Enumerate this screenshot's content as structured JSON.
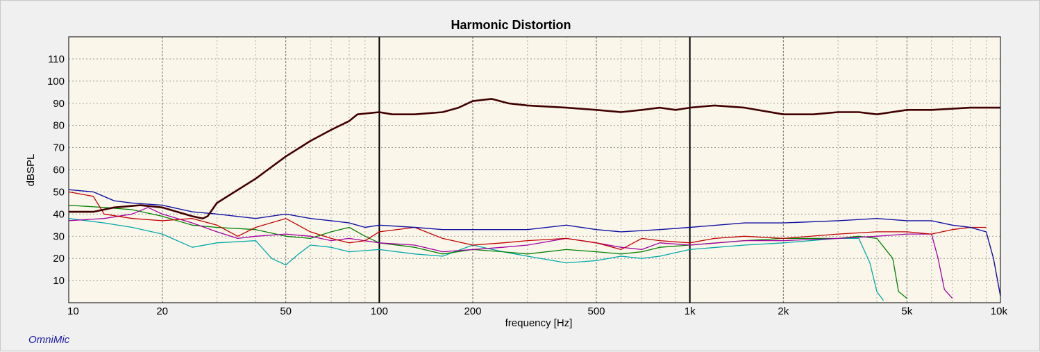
{
  "window": {
    "brand": "OmniMic"
  },
  "chart_data": {
    "type": "line",
    "title": "Harmonic Distortion",
    "xlabel": "frequency [Hz]",
    "ylabel": "dBSPL",
    "xscale": "log",
    "xlim": [
      10,
      10000
    ],
    "ylim": [
      0,
      120
    ],
    "x_ticks": [
      {
        "value": 10,
        "label": "10"
      },
      {
        "value": 20,
        "label": "20"
      },
      {
        "value": 50,
        "label": "50"
      },
      {
        "value": 100,
        "label": "100"
      },
      {
        "value": 200,
        "label": "200"
      },
      {
        "value": 500,
        "label": "500"
      },
      {
        "value": 1000,
        "label": "1k"
      },
      {
        "value": 2000,
        "label": "2k"
      },
      {
        "value": 5000,
        "label": "5k"
      },
      {
        "value": 10000,
        "label": "10k"
      }
    ],
    "y_ticks": [
      {
        "value": 10,
        "label": "10"
      },
      {
        "value": 20,
        "label": "20"
      },
      {
        "value": 30,
        "label": "30"
      },
      {
        "value": 40,
        "label": "40"
      },
      {
        "value": 50,
        "label": "50"
      },
      {
        "value": 60,
        "label": "60"
      },
      {
        "value": 70,
        "label": "70"
      },
      {
        "value": 80,
        "label": "80"
      },
      {
        "value": 90,
        "label": "90"
      },
      {
        "value": 100,
        "label": "100"
      },
      {
        "value": 110,
        "label": "110"
      }
    ],
    "grid": true,
    "markers": [
      100,
      1000
    ],
    "series": [
      {
        "color": "#00a8a8",
        "width": 1.3,
        "points": [
          [
            10,
            38
          ],
          [
            13,
            36
          ],
          [
            16,
            34
          ],
          [
            20,
            31
          ],
          [
            25,
            25
          ],
          [
            30,
            27
          ],
          [
            40,
            28
          ],
          [
            45,
            20
          ],
          [
            50,
            17
          ],
          [
            55,
            22
          ],
          [
            60,
            26
          ],
          [
            70,
            25
          ],
          [
            80,
            23
          ],
          [
            100,
            24
          ],
          [
            130,
            22
          ],
          [
            160,
            21
          ],
          [
            200,
            26
          ],
          [
            250,
            23
          ],
          [
            300,
            21
          ],
          [
            400,
            18
          ],
          [
            500,
            19
          ],
          [
            600,
            21
          ],
          [
            700,
            20
          ],
          [
            800,
            21
          ],
          [
            1000,
            24
          ],
          [
            1500,
            26
          ],
          [
            2000,
            27
          ],
          [
            3000,
            29
          ],
          [
            3500,
            29
          ],
          [
            3800,
            18
          ],
          [
            4000,
            5
          ],
          [
            4200,
            1
          ]
        ]
      },
      {
        "color": "#008000",
        "width": 1.3,
        "points": [
          [
            10,
            44
          ],
          [
            13,
            43
          ],
          [
            16,
            42
          ],
          [
            20,
            39
          ],
          [
            25,
            35
          ],
          [
            30,
            34
          ],
          [
            40,
            33
          ],
          [
            50,
            30
          ],
          [
            60,
            29
          ],
          [
            70,
            32
          ],
          [
            80,
            34
          ],
          [
            90,
            30
          ],
          [
            100,
            27
          ],
          [
            130,
            25
          ],
          [
            160,
            22
          ],
          [
            200,
            24
          ],
          [
            250,
            23
          ],
          [
            300,
            22
          ],
          [
            400,
            24
          ],
          [
            500,
            23
          ],
          [
            600,
            22
          ],
          [
            700,
            23
          ],
          [
            800,
            25
          ],
          [
            1000,
            26
          ],
          [
            1500,
            28
          ],
          [
            2000,
            29
          ],
          [
            3000,
            29
          ],
          [
            3500,
            30
          ],
          [
            4000,
            29
          ],
          [
            4500,
            20
          ],
          [
            4700,
            5
          ],
          [
            5000,
            2
          ]
        ]
      },
      {
        "color": "#a000a0",
        "width": 1.3,
        "points": [
          [
            10,
            37
          ],
          [
            13,
            38
          ],
          [
            16,
            40
          ],
          [
            18,
            43
          ],
          [
            20,
            40
          ],
          [
            25,
            36
          ],
          [
            30,
            32
          ],
          [
            35,
            29
          ],
          [
            40,
            30
          ],
          [
            50,
            31
          ],
          [
            60,
            30
          ],
          [
            70,
            28
          ],
          [
            80,
            29
          ],
          [
            100,
            27
          ],
          [
            130,
            26
          ],
          [
            160,
            23
          ],
          [
            200,
            24
          ],
          [
            250,
            25
          ],
          [
            300,
            26
          ],
          [
            400,
            29
          ],
          [
            500,
            27
          ],
          [
            600,
            25
          ],
          [
            700,
            24
          ],
          [
            800,
            27
          ],
          [
            1000,
            26
          ],
          [
            1500,
            28
          ],
          [
            2000,
            28
          ],
          [
            3000,
            29
          ],
          [
            4000,
            30
          ],
          [
            5000,
            31
          ],
          [
            6000,
            31
          ],
          [
            6300,
            20
          ],
          [
            6600,
            6
          ],
          [
            7000,
            2
          ]
        ]
      },
      {
        "color": "#c00000",
        "width": 1.3,
        "points": [
          [
            10,
            50
          ],
          [
            12,
            48
          ],
          [
            13,
            40
          ],
          [
            16,
            38
          ],
          [
            20,
            37
          ],
          [
            25,
            38
          ],
          [
            30,
            35
          ],
          [
            35,
            30
          ],
          [
            40,
            34
          ],
          [
            50,
            38
          ],
          [
            60,
            32
          ],
          [
            70,
            29
          ],
          [
            80,
            27
          ],
          [
            90,
            28
          ],
          [
            100,
            32
          ],
          [
            130,
            34
          ],
          [
            160,
            29
          ],
          [
            200,
            26
          ],
          [
            250,
            27
          ],
          [
            300,
            28
          ],
          [
            400,
            29
          ],
          [
            500,
            27
          ],
          [
            600,
            24
          ],
          [
            700,
            29
          ],
          [
            800,
            28
          ],
          [
            1000,
            27
          ],
          [
            1200,
            29
          ],
          [
            1500,
            30
          ],
          [
            2000,
            29
          ],
          [
            3000,
            31
          ],
          [
            4000,
            32
          ],
          [
            5000,
            32
          ],
          [
            6000,
            31
          ],
          [
            7000,
            33
          ],
          [
            8000,
            34
          ],
          [
            9000,
            34
          ]
        ]
      },
      {
        "color": "#1010a0",
        "width": 1.4,
        "points": [
          [
            10,
            51
          ],
          [
            12,
            50
          ],
          [
            14,
            46
          ],
          [
            16,
            45
          ],
          [
            20,
            44
          ],
          [
            25,
            41
          ],
          [
            30,
            40
          ],
          [
            40,
            38
          ],
          [
            50,
            40
          ],
          [
            60,
            38
          ],
          [
            70,
            37
          ],
          [
            80,
            36
          ],
          [
            90,
            34
          ],
          [
            100,
            35
          ],
          [
            130,
            34
          ],
          [
            160,
            33
          ],
          [
            200,
            33
          ],
          [
            300,
            33
          ],
          [
            400,
            35
          ],
          [
            500,
            33
          ],
          [
            600,
            32
          ],
          [
            800,
            33
          ],
          [
            1000,
            34
          ],
          [
            1500,
            36
          ],
          [
            2000,
            36
          ],
          [
            3000,
            37
          ],
          [
            4000,
            38
          ],
          [
            5000,
            37
          ],
          [
            6000,
            37
          ],
          [
            7000,
            35
          ],
          [
            8000,
            34
          ],
          [
            9000,
            32
          ],
          [
            9500,
            20
          ],
          [
            10000,
            3
          ]
        ]
      },
      {
        "color": "#400000",
        "width": 2.6,
        "points": [
          [
            10,
            41
          ],
          [
            12,
            41
          ],
          [
            14,
            43
          ],
          [
            17,
            44
          ],
          [
            20,
            43
          ],
          [
            25,
            39
          ],
          [
            27,
            38
          ],
          [
            28,
            39
          ],
          [
            30,
            45
          ],
          [
            40,
            56
          ],
          [
            50,
            66
          ],
          [
            60,
            73
          ],
          [
            70,
            78
          ],
          [
            80,
            82
          ],
          [
            85,
            85
          ],
          [
            100,
            86
          ],
          [
            110,
            85
          ],
          [
            130,
            85
          ],
          [
            160,
            86
          ],
          [
            180,
            88
          ],
          [
            200,
            91
          ],
          [
            230,
            92
          ],
          [
            260,
            90
          ],
          [
            300,
            89
          ],
          [
            400,
            88
          ],
          [
            500,
            87
          ],
          [
            600,
            86
          ],
          [
            700,
            87
          ],
          [
            800,
            88
          ],
          [
            900,
            87
          ],
          [
            1000,
            88
          ],
          [
            1200,
            89
          ],
          [
            1500,
            88
          ],
          [
            2000,
            85
          ],
          [
            2500,
            85
          ],
          [
            3000,
            86
          ],
          [
            3500,
            86
          ],
          [
            4000,
            85
          ],
          [
            5000,
            87
          ],
          [
            6000,
            87
          ],
          [
            8000,
            88
          ],
          [
            10000,
            88
          ]
        ]
      }
    ]
  }
}
